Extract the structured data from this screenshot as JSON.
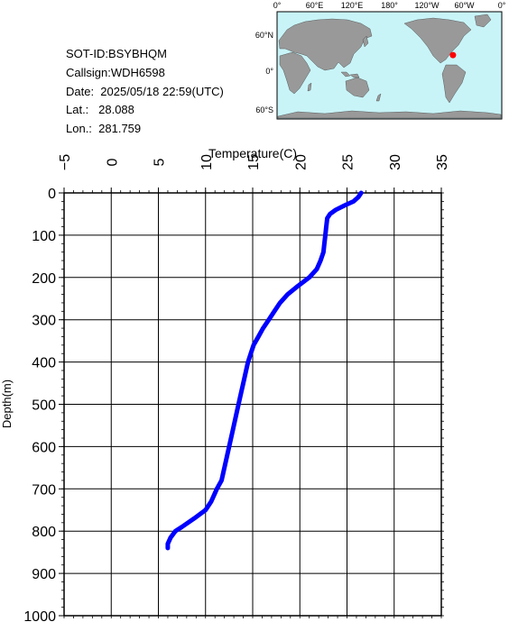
{
  "info": {
    "sot_id": "SOT-ID:BSYBHQM",
    "callsign": "Callsign:WDH6598",
    "date": "Date:  2025/05/18 22:59(UTC)",
    "lat": "Lat.:   28.088",
    "lon": "Lon.:  281.759"
  },
  "map": {
    "lon_labels": [
      "0°",
      "60°E",
      "120°E",
      "180°",
      "120°W",
      "60°W",
      "0°"
    ],
    "lat_labels": [
      "60°N",
      "0°",
      "60°S"
    ],
    "ocean_color": "#c8f4f8",
    "land_color": "#999999",
    "marker_color": "#ff0000",
    "marker": {
      "lat": 28.088,
      "lon": 281.759
    }
  },
  "chart_data": {
    "type": "line",
    "xlabel": "Temperature(C)",
    "ylabel": "Depth(m)",
    "xlim": [
      -5,
      35
    ],
    "ylim": [
      0,
      1000
    ],
    "y_inverted": true,
    "x_axis_position": "top",
    "x_ticks": [
      -5,
      0,
      5,
      10,
      15,
      20,
      25,
      30,
      35
    ],
    "y_ticks": [
      0,
      100,
      200,
      300,
      400,
      500,
      600,
      700,
      800,
      900,
      1000
    ],
    "grid": true,
    "series": [
      {
        "color": "#0000ff",
        "points": [
          [
            26.5,
            0
          ],
          [
            26.2,
            10
          ],
          [
            25.7,
            20
          ],
          [
            24.7,
            30
          ],
          [
            23.8,
            40
          ],
          [
            23.2,
            50
          ],
          [
            22.9,
            60
          ],
          [
            22.8,
            80
          ],
          [
            22.7,
            100
          ],
          [
            22.6,
            120
          ],
          [
            22.5,
            140
          ],
          [
            22.2,
            160
          ],
          [
            21.8,
            180
          ],
          [
            21.0,
            200
          ],
          [
            19.8,
            220
          ],
          [
            18.7,
            240
          ],
          [
            17.9,
            260
          ],
          [
            17.3,
            280
          ],
          [
            16.7,
            300
          ],
          [
            16.1,
            320
          ],
          [
            15.6,
            340
          ],
          [
            15.1,
            360
          ],
          [
            14.8,
            380
          ],
          [
            14.5,
            400
          ],
          [
            14.1,
            440
          ],
          [
            13.7,
            480
          ],
          [
            13.3,
            520
          ],
          [
            12.9,
            560
          ],
          [
            12.5,
            600
          ],
          [
            12.1,
            640
          ],
          [
            11.7,
            680
          ],
          [
            11.2,
            700
          ],
          [
            10.6,
            730
          ],
          [
            10.0,
            750
          ],
          [
            8.8,
            770
          ],
          [
            7.5,
            790
          ],
          [
            6.8,
            800
          ],
          [
            6.3,
            815
          ],
          [
            6.0,
            830
          ],
          [
            6.0,
            840
          ]
        ]
      }
    ]
  }
}
